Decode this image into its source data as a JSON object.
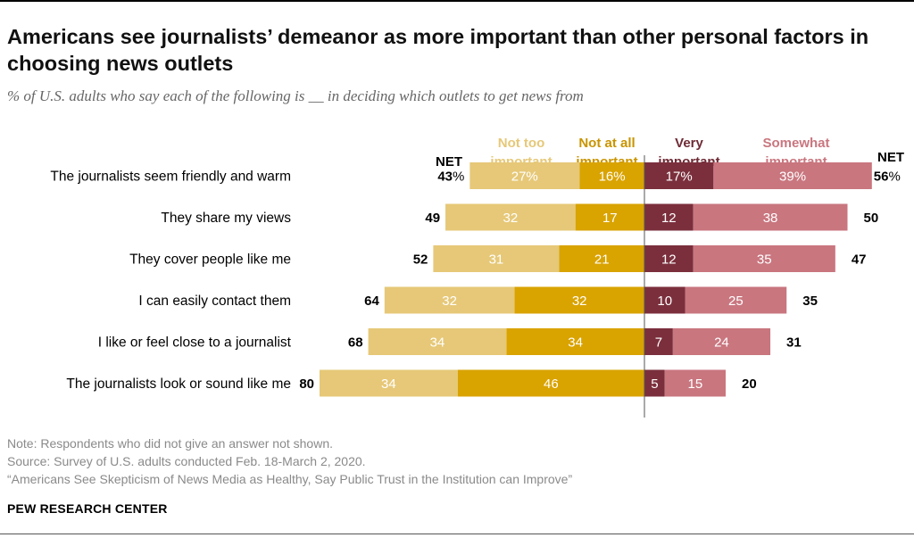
{
  "title": "Americans see journalists’ demeanor as more important than other personal factors in choosing news outlets",
  "subtitle": "% of U.S. adults who say each of the following is __ in deciding which outlets to get news from",
  "chart_data": {
    "type": "bar",
    "orientation": "horizontal-diverging",
    "categories": [
      "The journalists seem friendly and warm",
      "They share my views",
      "They cover people like me",
      "I can easily contact them",
      "I like or feel close to a journalist",
      "The journalists look or sound like me"
    ],
    "series": [
      {
        "name": "Not too important",
        "side": "left",
        "color": "#e6c878",
        "label_color": "#e6c878",
        "values": [
          27,
          32,
          31,
          32,
          34,
          34
        ]
      },
      {
        "name": "Not at all important",
        "side": "left",
        "color": "#d9a300",
        "label_color": "#c99400",
        "values": [
          16,
          17,
          21,
          32,
          34,
          46
        ]
      },
      {
        "name": "Very important",
        "side": "right",
        "color": "#7b2f3c",
        "label_color": "#6e2a35",
        "values": [
          17,
          12,
          12,
          10,
          7,
          5
        ]
      },
      {
        "name": "Somewhat important",
        "side": "right",
        "color": "#c9767f",
        "label_color": "#c9767f",
        "values": [
          39,
          38,
          35,
          25,
          24,
          15
        ]
      }
    ],
    "header_labels": [
      {
        "line1": "Not too",
        "line2": "important"
      },
      {
        "line1": "Not at all",
        "line2": "important"
      },
      {
        "line1": "Very",
        "line2": "important"
      },
      {
        "line1": "Somewhat",
        "line2": "important"
      }
    ],
    "net_header_left": "NET",
    "net_header_right": "NET",
    "net_left": [
      43,
      49,
      52,
      64,
      68,
      80
    ],
    "net_right": [
      56,
      50,
      47,
      35,
      31,
      20
    ],
    "percent_suffix": "%",
    "first_row_percent": true
  },
  "footer": {
    "note": "Note: Respondents who did not give an answer not shown.",
    "source": "Source: Survey of U.S. adults conducted Feb. 18-March 2, 2020.",
    "report": "“Americans See Skepticism of News Media as Healthy, Say Public Trust in the Institution can Improve”"
  },
  "organization": "PEW RESEARCH CENTER"
}
